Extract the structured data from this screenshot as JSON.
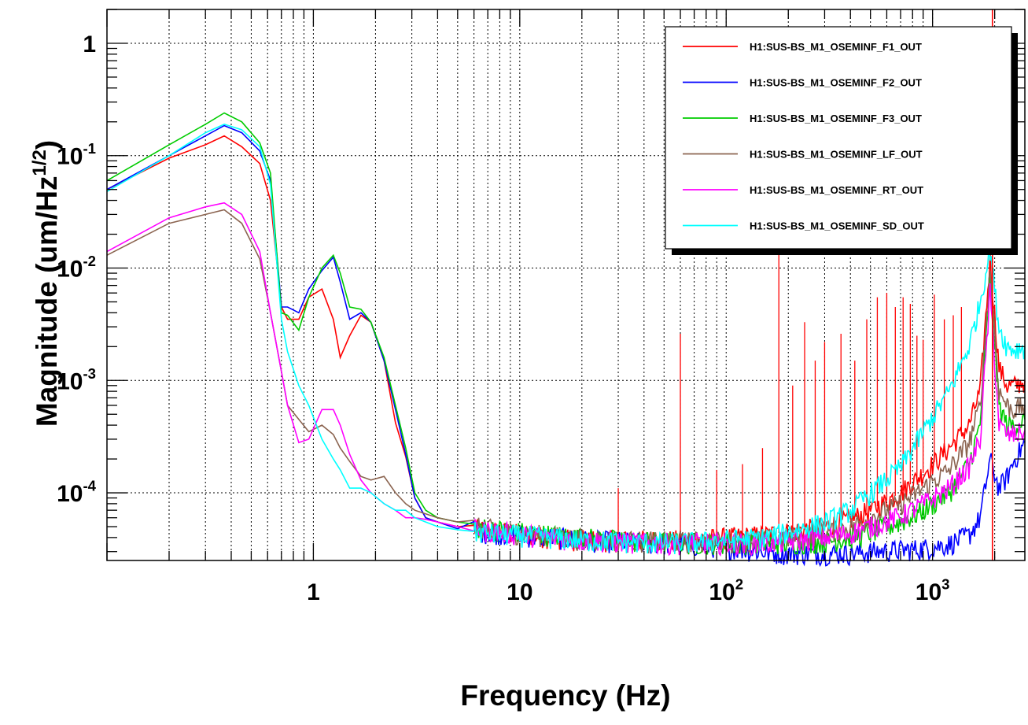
{
  "chart_data": {
    "type": "line",
    "xlabel": "Frequency (Hz)",
    "ylabel": "Magnitude (um/Hz^1/2)",
    "xscale": "log",
    "yscale": "log",
    "xlim": [
      0.1,
      2800
    ],
    "ylim": [
      2.5e-05,
      2.0
    ],
    "grid": true,
    "legend_position": "top-right",
    "x_tick_labels": [
      {
        "value": 1,
        "base": "1",
        "exp": ""
      },
      {
        "value": 10,
        "base": "10",
        "exp": ""
      },
      {
        "value": 100,
        "base": "10",
        "exp": "2"
      },
      {
        "value": 1000,
        "base": "10",
        "exp": "3"
      }
    ],
    "y_tick_labels": [
      {
        "value": 1,
        "base": "1",
        "exp": ""
      },
      {
        "value": 0.1,
        "base": "10",
        "exp": "-1"
      },
      {
        "value": 0.01,
        "base": "10",
        "exp": "-2"
      },
      {
        "value": 0.001,
        "base": "10",
        "exp": "-3"
      },
      {
        "value": 0.0001,
        "base": "10",
        "exp": "-4"
      }
    ],
    "cursor_line_x": 1950,
    "series": [
      {
        "name": "H1:SUS-BS_M1_OSEMINF_F1_OUT",
        "color": "#ff0000",
        "x": [
          0.1,
          0.2,
          0.3,
          0.37,
          0.45,
          0.55,
          0.62,
          0.7,
          0.75,
          0.85,
          0.95,
          1.1,
          1.25,
          1.35,
          1.5,
          1.7,
          1.9,
          2.2,
          2.5,
          2.8,
          3.1,
          3.5,
          4,
          5,
          6,
          8,
          10,
          15,
          20,
          30,
          40,
          60,
          80,
          100,
          150,
          200,
          300,
          400,
          500,
          700,
          900,
          1200,
          1500,
          1700,
          1900,
          2100,
          2300,
          2500,
          2800
        ],
        "values": [
          0.05,
          0.095,
          0.125,
          0.15,
          0.12,
          0.085,
          0.04,
          0.0045,
          0.0035,
          0.0035,
          0.0055,
          0.0065,
          0.0035,
          0.0016,
          0.0025,
          0.0038,
          0.0033,
          0.0015,
          0.00042,
          0.00021,
          9e-05,
          6e-05,
          5.5e-05,
          5e-05,
          4.8e-05,
          4.5e-05,
          4.3e-05,
          4e-05,
          3.8e-05,
          3.8e-05,
          3.8e-05,
          3.8e-05,
          3.9e-05,
          4e-05,
          4.2e-05,
          4.5e-05,
          5e-05,
          5.8e-05,
          7e-05,
          0.0001,
          0.00015,
          0.00025,
          0.0004,
          0.0008,
          0.012,
          0.0013,
          0.0009,
          0.0009,
          0.001
        ]
      },
      {
        "name": "H1:SUS-BS_M1_OSEMINF_F2_OUT",
        "color": "#0000ff",
        "x": [
          0.1,
          0.2,
          0.3,
          0.37,
          0.45,
          0.55,
          0.62,
          0.7,
          0.75,
          0.85,
          0.95,
          1.1,
          1.25,
          1.35,
          1.5,
          1.7,
          1.9,
          2.2,
          2.5,
          2.8,
          3.1,
          3.5,
          4,
          5,
          6,
          8,
          10,
          15,
          20,
          30,
          40,
          60,
          80,
          100,
          150,
          200,
          300,
          400,
          500,
          700,
          900,
          1200,
          1500,
          1700,
          1900,
          2100,
          2300,
          2500,
          2800
        ],
        "values": [
          0.05,
          0.1,
          0.15,
          0.185,
          0.16,
          0.11,
          0.06,
          0.0045,
          0.0045,
          0.004,
          0.0065,
          0.0095,
          0.0125,
          0.0075,
          0.0035,
          0.004,
          0.0033,
          0.0015,
          0.00055,
          0.00022,
          9e-05,
          6e-05,
          5.5e-05,
          4.8e-05,
          4.6e-05,
          4.4e-05,
          4.2e-05,
          4e-05,
          3.8e-05,
          3.7e-05,
          3.6e-05,
          3.5e-05,
          3.4e-05,
          3.3e-05,
          3e-05,
          2.9e-05,
          2.9e-05,
          2.9e-05,
          3e-05,
          3.1e-05,
          3.2e-05,
          3.5e-05,
          4.2e-05,
          6e-05,
          0.0002,
          0.00011,
          0.00014,
          0.0002,
          0.00028
        ]
      },
      {
        "name": "H1:SUS-BS_M1_OSEMINF_F3_OUT",
        "color": "#00cc00",
        "x": [
          0.1,
          0.2,
          0.3,
          0.37,
          0.45,
          0.55,
          0.62,
          0.7,
          0.75,
          0.85,
          0.95,
          1.1,
          1.25,
          1.35,
          1.5,
          1.7,
          1.9,
          2.2,
          2.5,
          2.8,
          3.1,
          3.5,
          4,
          5,
          6,
          8,
          10,
          15,
          20,
          30,
          40,
          60,
          80,
          100,
          150,
          200,
          300,
          400,
          500,
          700,
          900,
          1200,
          1500,
          1700,
          1900,
          2100,
          2300,
          2500,
          2800
        ],
        "values": [
          0.06,
          0.125,
          0.19,
          0.24,
          0.2,
          0.13,
          0.07,
          0.004,
          0.0038,
          0.0028,
          0.0055,
          0.01,
          0.013,
          0.009,
          0.0045,
          0.0043,
          0.0033,
          0.0016,
          0.0006,
          0.00025,
          0.0001,
          7e-05,
          6e-05,
          5.5e-05,
          5e-05,
          4.7e-05,
          4.5e-05,
          4.2e-05,
          4e-05,
          3.8e-05,
          3.7e-05,
          3.6e-05,
          3.6e-05,
          3.6e-05,
          3.6e-05,
          3.6e-05,
          3.7e-05,
          4e-05,
          4.5e-05,
          5.5e-05,
          7e-05,
          0.0001,
          0.00018,
          0.0004,
          0.008,
          0.0006,
          0.0004,
          0.0004,
          0.00045
        ]
      },
      {
        "name": "H1:SUS-BS_M1_OSEMINF_LF_OUT",
        "color": "#8b6450",
        "x": [
          0.1,
          0.2,
          0.3,
          0.37,
          0.45,
          0.55,
          0.62,
          0.7,
          0.75,
          0.85,
          0.95,
          1.1,
          1.25,
          1.35,
          1.5,
          1.7,
          1.9,
          2.2,
          2.5,
          2.8,
          3.1,
          3.5,
          4,
          5,
          6,
          8,
          10,
          15,
          20,
          30,
          40,
          60,
          80,
          100,
          150,
          200,
          300,
          400,
          500,
          700,
          900,
          1200,
          1500,
          1700,
          1900,
          2100,
          2300,
          2500,
          2800
        ],
        "values": [
          0.013,
          0.025,
          0.03,
          0.033,
          0.025,
          0.012,
          0.004,
          0.0012,
          0.0006,
          0.00045,
          0.00035,
          0.0004,
          0.00033,
          0.00025,
          0.00019,
          0.00014,
          0.00013,
          0.00014,
          0.0001,
          8e-05,
          7e-05,
          6.5e-05,
          6e-05,
          5.5e-05,
          5e-05,
          4.6e-05,
          4.4e-05,
          4.1e-05,
          3.9e-05,
          3.8e-05,
          3.7e-05,
          3.7e-05,
          3.7e-05,
          3.7e-05,
          3.8e-05,
          4e-05,
          4.4e-05,
          5e-05,
          6e-05,
          8e-05,
          0.00011,
          0.00016,
          0.00028,
          0.0006,
          0.01,
          0.0008,
          0.0006,
          0.00055,
          0.0006
        ]
      },
      {
        "name": "H1:SUS-BS_M1_OSEMINF_RT_OUT",
        "color": "#ff00ff",
        "x": [
          0.1,
          0.2,
          0.3,
          0.37,
          0.45,
          0.55,
          0.62,
          0.7,
          0.75,
          0.85,
          0.95,
          1.1,
          1.25,
          1.35,
          1.5,
          1.7,
          1.9,
          2.2,
          2.5,
          2.8,
          3.1,
          3.5,
          4,
          5,
          6,
          8,
          10,
          15,
          20,
          30,
          40,
          60,
          80,
          100,
          150,
          200,
          300,
          400,
          500,
          700,
          900,
          1200,
          1500,
          1700,
          1900,
          2100,
          2300,
          2500,
          2800
        ],
        "values": [
          0.014,
          0.028,
          0.035,
          0.038,
          0.03,
          0.014,
          0.004,
          0.0012,
          0.0006,
          0.00028,
          0.0003,
          0.00055,
          0.00055,
          0.0004,
          0.00022,
          0.00013,
          0.0001,
          8e-05,
          7e-05,
          6e-05,
          6e-05,
          5.8e-05,
          5.5e-05,
          5e-05,
          4.7e-05,
          4.5e-05,
          4.3e-05,
          4e-05,
          3.8e-05,
          3.7e-05,
          3.6e-05,
          3.6e-05,
          3.6e-05,
          3.6e-05,
          3.6e-05,
          3.7e-05,
          4e-05,
          4.4e-05,
          5e-05,
          6.2e-05,
          8e-05,
          0.00011,
          0.00017,
          0.0003,
          0.006,
          0.0004,
          0.00033,
          0.00033,
          0.00036
        ]
      },
      {
        "name": "H1:SUS-BS_M1_OSEMINF_SD_OUT",
        "color": "#00ffff",
        "x": [
          0.1,
          0.2,
          0.3,
          0.37,
          0.45,
          0.55,
          0.62,
          0.7,
          0.75,
          0.85,
          0.95,
          1.1,
          1.25,
          1.35,
          1.5,
          1.7,
          1.9,
          2.2,
          2.5,
          2.8,
          3.1,
          3.5,
          4,
          5,
          6,
          8,
          10,
          15,
          20,
          30,
          40,
          60,
          80,
          100,
          150,
          200,
          300,
          400,
          500,
          700,
          900,
          1200,
          1500,
          1700,
          1900,
          2100,
          2300,
          2500,
          2800
        ],
        "values": [
          0.048,
          0.1,
          0.16,
          0.19,
          0.17,
          0.12,
          0.055,
          0.0035,
          0.0018,
          0.0009,
          0.0006,
          0.0003,
          0.0002,
          0.00016,
          0.00011,
          0.00011,
          0.0001,
          8e-05,
          7e-05,
          7e-05,
          6e-05,
          5.5e-05,
          5e-05,
          4.7e-05,
          4.5e-05,
          4.3e-05,
          4.2e-05,
          4e-05,
          3.8e-05,
          3.7e-05,
          3.6e-05,
          3.6e-05,
          3.7e-05,
          3.8e-05,
          4e-05,
          4.5e-05,
          5.5e-05,
          7e-05,
          0.0001,
          0.00017,
          0.00035,
          0.0008,
          0.002,
          0.005,
          0.015,
          0.003,
          0.002,
          0.0019,
          0.002
        ]
      }
    ]
  }
}
